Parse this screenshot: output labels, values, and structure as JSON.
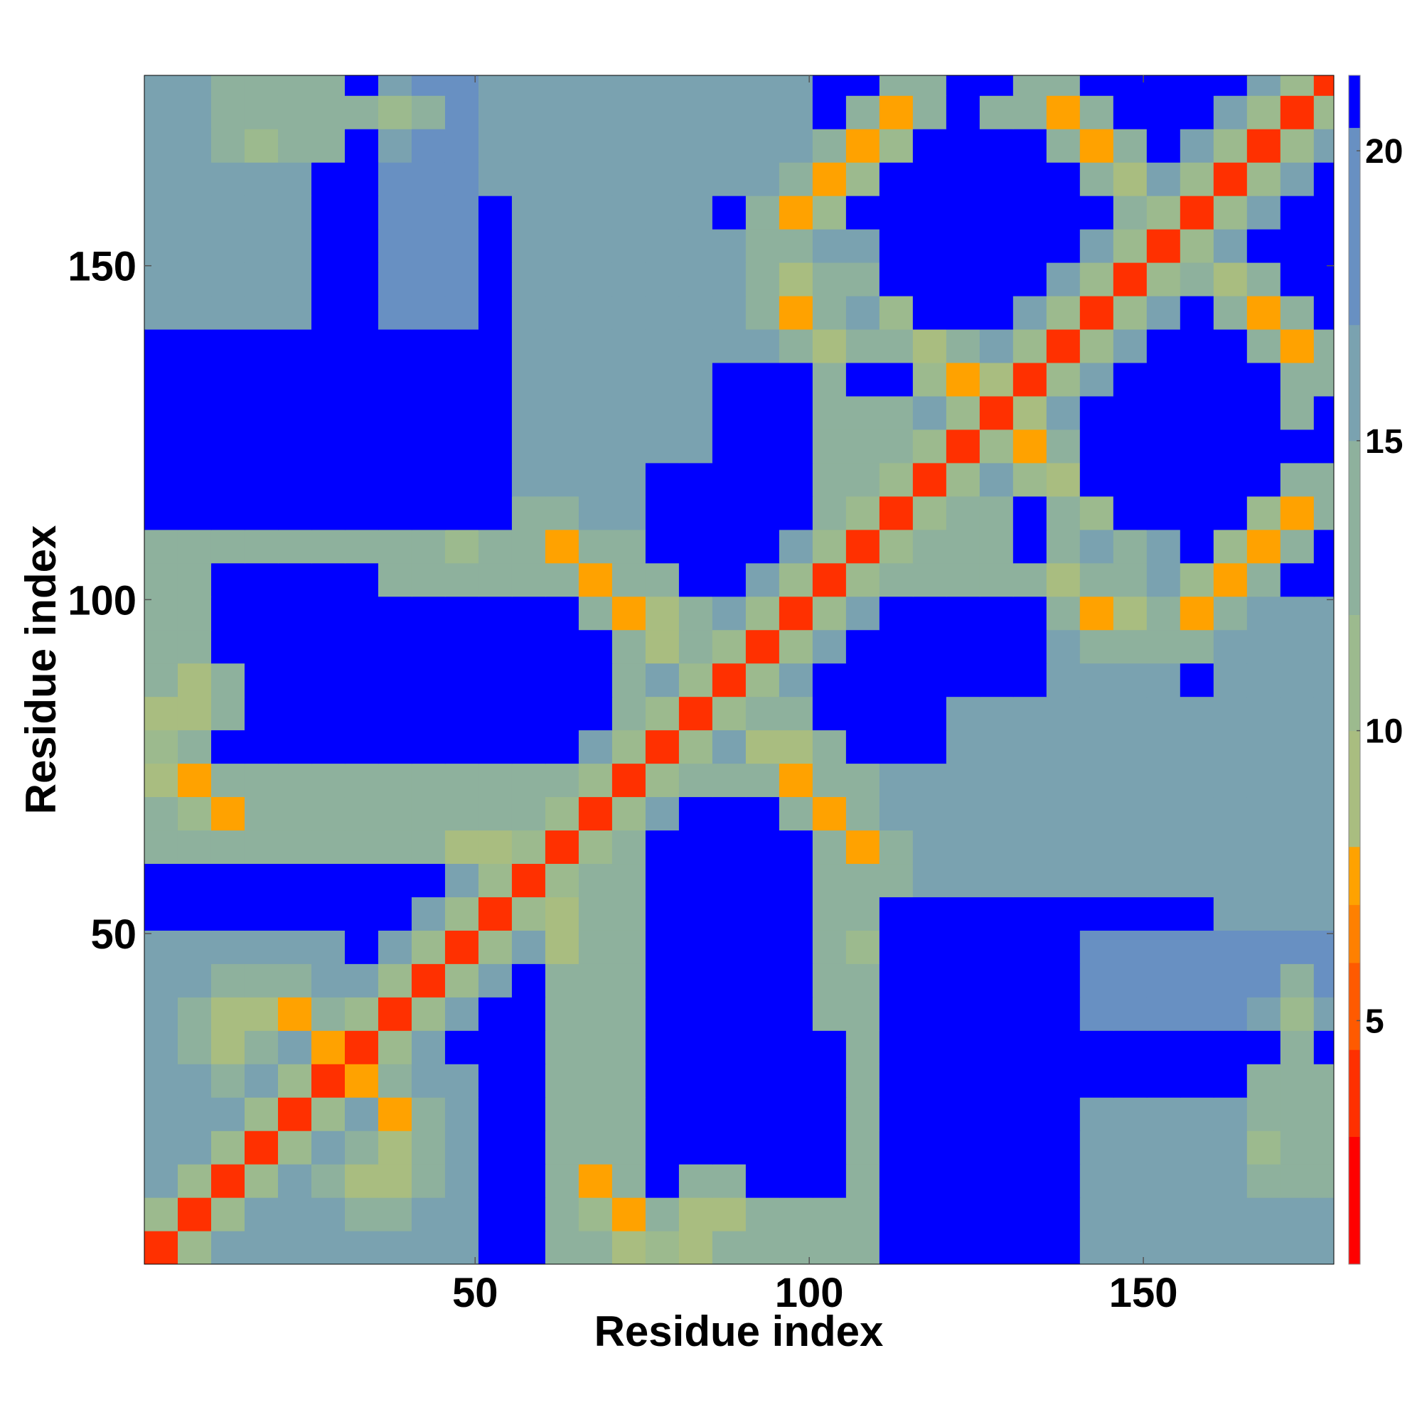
{
  "chart_data": {
    "type": "heatmap",
    "x_label": "Residue index",
    "y_label": "Residue index",
    "x": [
      3,
      8,
      13,
      18,
      23,
      28,
      33,
      38,
      43,
      48,
      53,
      58,
      63,
      68,
      73,
      78,
      83,
      88,
      93,
      98,
      103,
      108,
      113,
      118,
      123,
      128,
      133,
      138,
      143,
      148,
      153,
      158,
      163,
      168,
      173,
      178
    ],
    "y": [
      3,
      8,
      13,
      18,
      23,
      28,
      33,
      38,
      43,
      48,
      53,
      58,
      63,
      68,
      73,
      78,
      83,
      88,
      93,
      98,
      103,
      108,
      113,
      118,
      123,
      128,
      133,
      138,
      143,
      148,
      153,
      158,
      163,
      168,
      173,
      178
    ],
    "xlim": [
      0.5,
      178.5
    ],
    "ylim": [
      0.5,
      178.5
    ],
    "xticks": [
      50,
      100,
      150
    ],
    "yticks": [
      50,
      100,
      150
    ],
    "zlim": [
      0.8,
      21.3
    ],
    "zticks": [
      5,
      10,
      15,
      20
    ],
    "colorscale": [
      [
        0.8,
        "#ff0000"
      ],
      [
        3,
        "#ff3000"
      ],
      [
        4.5,
        "#ff5a00"
      ],
      [
        6,
        "#ff8000"
      ],
      [
        7,
        "#ffa200"
      ],
      [
        8,
        "#a9bd80"
      ],
      [
        10,
        "#9cba8e"
      ],
      [
        12,
        "#8eb19d"
      ],
      [
        15,
        "#7aa2b0"
      ],
      [
        17,
        "#6890c2"
      ],
      [
        20.4,
        "#0000ff"
      ]
    ],
    "z": [
      [
        4,
        10,
        15,
        15,
        15,
        15,
        15,
        15,
        15,
        15,
        22,
        22,
        14,
        13,
        8,
        11,
        9,
        12,
        14,
        14,
        14,
        14,
        22,
        22,
        22,
        22,
        22,
        22,
        16,
        16,
        16,
        16,
        16,
        16,
        16,
        16
      ],
      [
        10,
        4,
        10,
        15,
        15,
        15,
        14,
        14,
        15,
        15,
        22,
        22,
        14,
        11,
        7,
        12,
        8,
        9,
        14,
        14,
        14,
        14,
        22,
        22,
        22,
        22,
        22,
        22,
        16,
        16,
        16,
        16,
        16,
        16,
        16,
        16
      ],
      [
        15,
        10,
        4,
        10,
        15,
        13,
        8,
        8,
        14,
        15,
        22,
        22,
        12,
        7,
        12,
        22,
        14,
        13,
        22,
        22,
        22,
        14,
        22,
        22,
        22,
        22,
        22,
        22,
        16,
        16,
        16,
        16,
        16,
        14,
        14,
        14
      ],
      [
        15,
        15,
        10,
        4,
        10,
        15,
        12,
        9,
        14,
        15,
        22,
        22,
        14,
        13,
        14,
        22,
        22,
        22,
        22,
        22,
        22,
        14,
        22,
        22,
        22,
        22,
        22,
        22,
        16,
        16,
        16,
        16,
        15,
        11,
        14,
        14
      ],
      [
        15,
        15,
        15,
        10,
        4,
        10,
        15,
        7,
        12,
        15,
        22,
        22,
        14,
        14,
        14,
        22,
        22,
        22,
        22,
        22,
        22,
        14,
        22,
        22,
        22,
        22,
        22,
        22,
        16,
        16,
        16,
        16,
        16,
        14,
        14,
        14
      ],
      [
        15,
        15,
        13,
        15,
        10,
        4,
        7,
        12,
        15,
        15,
        22,
        22,
        14,
        14,
        14,
        22,
        22,
        22,
        22,
        22,
        22,
        14,
        22,
        22,
        22,
        22,
        22,
        22,
        22,
        22,
        22,
        22,
        22,
        14,
        14,
        14
      ],
      [
        15,
        14,
        8,
        12,
        15,
        7,
        4,
        10,
        15,
        22,
        22,
        22,
        14,
        14,
        14,
        22,
        22,
        22,
        22,
        22,
        22,
        14,
        22,
        22,
        22,
        22,
        22,
        22,
        22,
        22,
        22,
        22,
        22,
        22,
        14,
        22
      ],
      [
        15,
        14,
        8,
        9,
        7,
        12,
        10,
        4,
        10,
        15,
        22,
        22,
        14,
        14,
        14,
        22,
        22,
        22,
        22,
        22,
        13,
        13,
        22,
        22,
        22,
        22,
        22,
        22,
        17,
        17,
        17,
        17,
        17,
        15,
        10,
        15
      ],
      [
        15,
        15,
        14,
        14,
        12,
        15,
        15,
        10,
        4,
        10,
        15,
        22,
        14,
        14,
        14,
        22,
        22,
        22,
        22,
        22,
        13,
        13,
        22,
        22,
        22,
        22,
        22,
        22,
        17,
        17,
        17,
        17,
        17,
        17,
        14,
        17
      ],
      [
        15,
        15,
        15,
        15,
        15,
        15,
        22,
        15,
        10,
        4,
        10,
        15,
        8,
        14,
        14,
        22,
        22,
        22,
        22,
        22,
        13,
        10,
        22,
        22,
        22,
        22,
        22,
        22,
        17,
        17,
        17,
        17,
        17,
        17,
        17,
        17
      ],
      [
        22,
        22,
        22,
        22,
        22,
        22,
        22,
        22,
        15,
        10,
        4,
        10,
        8,
        12,
        14,
        22,
        22,
        22,
        22,
        22,
        13,
        13,
        22,
        22,
        22,
        22,
        22,
        22,
        22,
        22,
        22,
        22,
        15,
        15,
        15,
        15
      ],
      [
        22,
        22,
        22,
        22,
        22,
        22,
        22,
        22,
        22,
        15,
        10,
        4,
        10,
        14,
        14,
        22,
        22,
        22,
        22,
        22,
        13,
        12,
        14,
        15,
        15,
        15,
        15,
        15,
        15,
        15,
        15,
        15,
        15,
        15,
        15,
        15
      ],
      [
        14,
        14,
        12,
        14,
        14,
        14,
        14,
        14,
        14,
        8,
        8,
        10,
        4,
        10,
        14,
        22,
        22,
        22,
        22,
        22,
        12,
        7,
        13,
        15,
        15,
        15,
        15,
        15,
        15,
        15,
        15,
        15,
        15,
        15,
        15,
        15
      ],
      [
        13,
        11,
        7,
        13,
        14,
        14,
        14,
        14,
        14,
        14,
        12,
        14,
        10,
        4,
        10,
        15,
        22,
        22,
        22,
        12,
        7,
        12,
        15,
        15,
        15,
        15,
        15,
        15,
        15,
        15,
        15,
        15,
        15,
        15,
        15,
        15
      ],
      [
        8,
        7,
        12,
        14,
        14,
        14,
        14,
        14,
        14,
        14,
        14,
        14,
        14,
        10,
        4,
        10,
        14,
        14,
        12,
        7,
        12,
        13,
        15,
        15,
        15,
        15,
        15,
        15,
        15,
        15,
        15,
        15,
        15,
        15,
        15,
        15
      ],
      [
        11,
        12,
        22,
        22,
        22,
        22,
        22,
        22,
        22,
        22,
        22,
        22,
        22,
        15,
        10,
        4,
        10,
        15,
        8,
        9,
        12,
        22,
        22,
        22,
        15,
        15,
        15,
        15,
        15,
        15,
        15,
        15,
        15,
        15,
        15,
        15
      ],
      [
        9,
        8,
        14,
        22,
        22,
        22,
        22,
        22,
        22,
        22,
        22,
        22,
        22,
        22,
        14,
        10,
        4,
        10,
        12,
        13,
        22,
        22,
        22,
        22,
        15,
        15,
        15,
        15,
        15,
        15,
        15,
        15,
        15,
        15,
        15,
        15
      ],
      [
        12,
        9,
        13,
        22,
        22,
        22,
        22,
        22,
        22,
        22,
        22,
        22,
        22,
        22,
        14,
        15,
        10,
        4,
        10,
        15,
        22,
        22,
        22,
        22,
        22,
        22,
        22,
        15,
        15,
        15,
        15,
        22,
        15,
        15,
        15,
        15
      ],
      [
        14,
        14,
        22,
        22,
        22,
        22,
        22,
        22,
        22,
        22,
        22,
        22,
        22,
        22,
        12,
        8,
        12,
        10,
        4,
        10,
        15,
        22,
        22,
        22,
        22,
        22,
        22,
        15,
        12,
        13,
        14,
        13,
        15,
        15,
        15,
        15
      ],
      [
        14,
        14,
        22,
        22,
        22,
        22,
        22,
        22,
        22,
        22,
        22,
        22,
        22,
        12,
        7,
        9,
        13,
        15,
        10,
        4,
        10,
        15,
        22,
        22,
        22,
        22,
        22,
        12,
        7,
        8,
        12,
        7,
        12,
        15,
        15,
        15
      ],
      [
        14,
        14,
        22,
        22,
        22,
        22,
        22,
        13,
        13,
        13,
        13,
        13,
        12,
        7,
        12,
        12,
        22,
        22,
        15,
        10,
        4,
        10,
        14,
        14,
        14,
        14,
        12,
        8,
        12,
        13,
        15,
        11,
        7,
        12,
        22,
        22
      ],
      [
        14,
        14,
        14,
        14,
        14,
        14,
        14,
        13,
        13,
        10,
        13,
        12,
        7,
        12,
        13,
        22,
        22,
        22,
        22,
        15,
        10,
        4,
        10,
        14,
        14,
        14,
        22,
        12,
        15,
        13,
        15,
        22,
        11,
        7,
        12,
        22
      ],
      [
        22,
        22,
        22,
        22,
        22,
        22,
        22,
        22,
        22,
        22,
        22,
        14,
        13,
        15,
        15,
        22,
        22,
        22,
        22,
        22,
        14,
        10,
        4,
        10,
        14,
        14,
        22,
        13,
        11,
        22,
        22,
        22,
        22,
        11,
        7,
        13
      ],
      [
        22,
        22,
        22,
        22,
        22,
        22,
        22,
        22,
        22,
        22,
        22,
        15,
        15,
        15,
        15,
        22,
        22,
        22,
        22,
        22,
        14,
        14,
        10,
        4,
        10,
        15,
        11,
        8,
        22,
        22,
        22,
        22,
        22,
        22,
        12,
        14
      ],
      [
        22,
        22,
        22,
        22,
        22,
        22,
        22,
        22,
        22,
        22,
        22,
        15,
        15,
        15,
        15,
        15,
        15,
        22,
        22,
        22,
        14,
        14,
        14,
        10,
        4,
        10,
        7,
        12,
        22,
        22,
        22,
        22,
        22,
        22,
        22,
        22
      ],
      [
        22,
        22,
        22,
        22,
        22,
        22,
        22,
        22,
        22,
        22,
        22,
        15,
        15,
        15,
        15,
        15,
        15,
        22,
        22,
        22,
        14,
        14,
        14,
        15,
        10,
        4,
        8,
        15,
        22,
        22,
        22,
        22,
        22,
        22,
        14,
        22
      ],
      [
        22,
        22,
        22,
        22,
        22,
        22,
        22,
        22,
        22,
        22,
        22,
        15,
        15,
        15,
        15,
        15,
        15,
        22,
        22,
        22,
        12,
        22,
        22,
        11,
        7,
        8,
        4,
        10,
        15,
        22,
        22,
        22,
        22,
        22,
        12,
        14
      ],
      [
        22,
        22,
        22,
        22,
        22,
        22,
        22,
        22,
        22,
        22,
        22,
        15,
        15,
        15,
        15,
        15,
        15,
        15,
        15,
        12,
        8,
        12,
        13,
        8,
        12,
        15,
        10,
        4,
        10,
        15,
        22,
        22,
        22,
        12,
        7,
        13
      ],
      [
        16,
        16,
        16,
        16,
        16,
        22,
        22,
        17,
        17,
        17,
        22,
        15,
        15,
        15,
        15,
        15,
        15,
        15,
        12,
        7,
        12,
        15,
        11,
        22,
        22,
        22,
        15,
        10,
        4,
        10,
        15,
        22,
        12,
        7,
        12,
        22
      ],
      [
        16,
        16,
        16,
        16,
        16,
        22,
        22,
        17,
        17,
        17,
        22,
        15,
        15,
        15,
        15,
        15,
        15,
        15,
        13,
        8,
        13,
        13,
        22,
        22,
        22,
        22,
        22,
        15,
        10,
        4,
        10,
        12,
        8,
        12,
        22,
        22
      ],
      [
        16,
        16,
        16,
        16,
        16,
        22,
        22,
        17,
        17,
        17,
        22,
        15,
        15,
        15,
        15,
        15,
        15,
        15,
        14,
        12,
        15,
        15,
        22,
        22,
        22,
        22,
        22,
        22,
        15,
        10,
        4,
        10,
        15,
        22,
        22,
        22
      ],
      [
        16,
        16,
        16,
        16,
        16,
        22,
        22,
        17,
        17,
        17,
        22,
        15,
        15,
        15,
        15,
        15,
        15,
        22,
        13,
        7,
        11,
        22,
        22,
        22,
        22,
        22,
        22,
        22,
        22,
        12,
        10,
        4,
        10,
        15,
        22,
        22
      ],
      [
        16,
        16,
        16,
        15,
        16,
        22,
        22,
        17,
        17,
        17,
        15,
        15,
        15,
        15,
        15,
        15,
        15,
        15,
        15,
        12,
        7,
        11,
        22,
        22,
        22,
        22,
        22,
        22,
        12,
        8,
        15,
        10,
        4,
        10,
        15,
        22
      ],
      [
        16,
        16,
        14,
        11,
        14,
        14,
        22,
        15,
        17,
        17,
        15,
        15,
        15,
        15,
        15,
        15,
        15,
        15,
        15,
        15,
        12,
        7,
        11,
        22,
        22,
        22,
        22,
        12,
        7,
        12,
        22,
        15,
        10,
        4,
        10,
        15
      ],
      [
        16,
        16,
        14,
        14,
        14,
        14,
        14,
        10,
        14,
        17,
        15,
        15,
        15,
        15,
        15,
        15,
        15,
        15,
        15,
        15,
        22,
        12,
        7,
        12,
        22,
        14,
        12,
        7,
        12,
        22,
        22,
        22,
        15,
        10,
        4,
        10
      ],
      [
        16,
        16,
        14,
        14,
        14,
        14,
        22,
        15,
        17,
        17,
        15,
        15,
        15,
        15,
        15,
        15,
        15,
        15,
        15,
        15,
        22,
        22,
        13,
        14,
        22,
        22,
        14,
        13,
        22,
        22,
        22,
        22,
        22,
        15,
        10,
        4
      ]
    ]
  }
}
